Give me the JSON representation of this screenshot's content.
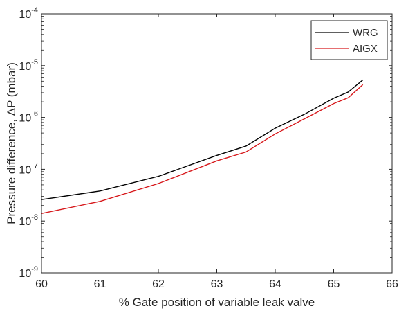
{
  "chart_data": {
    "type": "line",
    "xlabel": "% Gate position of variable leak valve",
    "ylabel": "Pressure difference, ΔP (mbar)",
    "xlim": [
      60,
      66
    ],
    "ylim": [
      1e-09,
      0.0001
    ],
    "y_scale": "log",
    "x_ticks": [
      "60",
      "61",
      "62",
      "63",
      "64",
      "65",
      "66"
    ],
    "y_ticks": [
      {
        "value": 1e-09,
        "base": "10",
        "exp": "-9"
      },
      {
        "value": 1e-08,
        "base": "10",
        "exp": "-8"
      },
      {
        "value": 1e-07,
        "base": "10",
        "exp": "-7"
      },
      {
        "value": 1e-06,
        "base": "10",
        "exp": "-6"
      },
      {
        "value": 1e-05,
        "base": "10",
        "exp": "-5"
      },
      {
        "value": 0.0001,
        "base": "10",
        "exp": "-4"
      }
    ],
    "grid": false,
    "legend_position": "top-right",
    "series": [
      {
        "name": "WRG",
        "color": "#000000",
        "x": [
          60,
          61,
          62,
          63,
          63.5,
          64,
          64.5,
          65,
          65.25,
          65.5
        ],
        "y": [
          2.6e-08,
          3.8e-08,
          7.3e-08,
          1.85e-07,
          2.8e-07,
          6.2e-07,
          1.15e-06,
          2.35e-06,
          3.1e-06,
          5.3e-06
        ]
      },
      {
        "name": "AIGX",
        "color": "#d7191c",
        "x": [
          60,
          61,
          62,
          63,
          63.5,
          64,
          64.5,
          65,
          65.25,
          65.5
        ],
        "y": [
          1.4e-08,
          2.4e-08,
          5.3e-08,
          1.45e-07,
          2.15e-07,
          4.8e-07,
          9.4e-07,
          1.85e-06,
          2.4e-06,
          4.3e-06
        ]
      }
    ]
  }
}
